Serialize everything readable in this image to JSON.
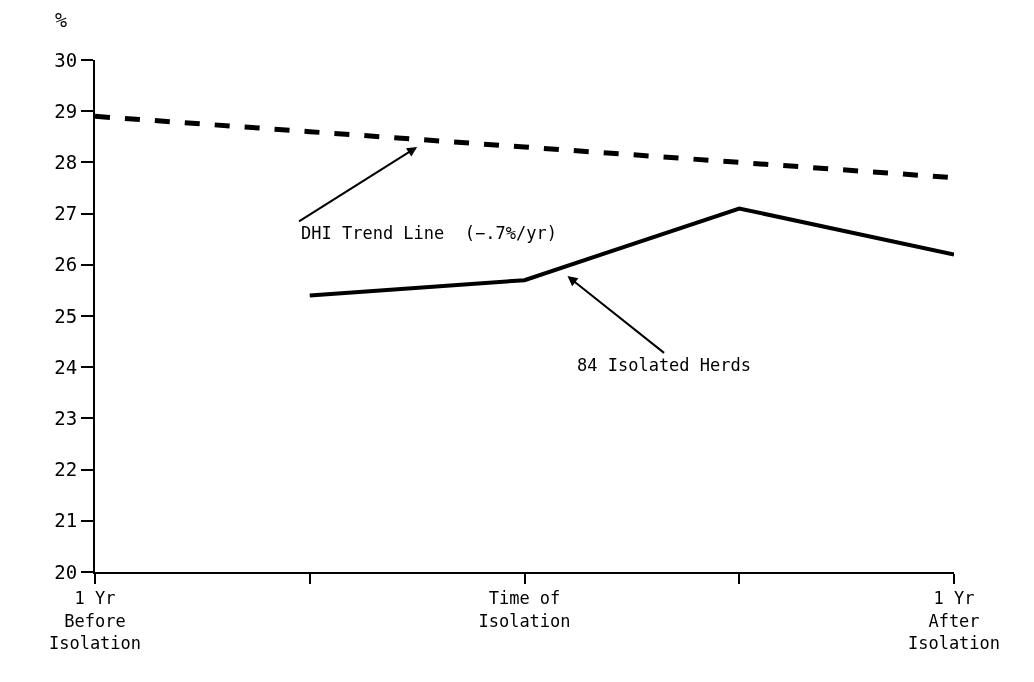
{
  "chart_data": {
    "type": "line",
    "ylabel": "%",
    "categories": [
      "1 Yr\nBefore\nIsolation",
      null,
      "Time of\nIsolation",
      null,
      "1 Yr\nAfter\nIsolation"
    ],
    "series": [
      {
        "color": "#000000",
        "line_style": "dashed",
        "values": [
          28.9,
          28.6,
          28.3,
          28.0,
          27.7
        ]
      },
      {
        "color": "#000000",
        "line_style": "solid",
        "values": [
          null,
          25.4,
          25.7,
          27.1,
          26.2
        ]
      }
    ],
    "annotations": [
      "DHI Trend Line  (−.7%/yr)",
      "84 Isolated Herds"
    ],
    "ylim": [
      20,
      30
    ],
    "yticks": [
      20,
      21,
      22,
      23,
      24,
      25,
      26,
      27,
      28,
      29,
      30
    ],
    "marker": "none"
  }
}
